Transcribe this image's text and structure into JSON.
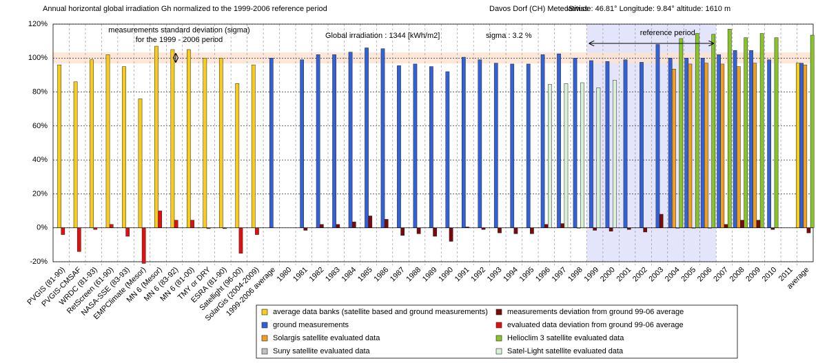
{
  "chart_data": {
    "type": "bar",
    "title": "Annual horizontal global irradiation Gh normalized to the 1999-2006 reference period",
    "subtitle": "Davos Dorf (CH) MeteoSwiss",
    "location": "latitude: 46.81°  Longitude: 9.84°  altitude: 1610 m",
    "annotations": [
      "measurements standard deviation (sigma)",
      "for the 1999 - 2006 period",
      "Global irradiation : 1344 [kWh/m2]",
      "sigma : 3.2 %",
      "reference period"
    ],
    "categories": [
      "PVGIS (81-90)",
      "PVGIS-CMSAF",
      "WRDC (81-93)",
      "RetScreen (61-90)",
      "NASA-SSE (83-93)",
      "EMPClimate (Mesor)",
      "MN 6 (Mesor)",
      "MN 6 (83-92)",
      "MN 6 (81-00)",
      "TMY or DRY",
      "ESRA (81-90)",
      "Satellight (96-00)",
      "SolarGis (2004-2009)",
      "1999-2006 average",
      "1980",
      "1981",
      "1982",
      "1983",
      "1984",
      "1985",
      "1986",
      "1987",
      "1988",
      "1989",
      "1990",
      "1991",
      "1992",
      "1993",
      "1994",
      "1995",
      "1996",
      "1997",
      "1998",
      "1999",
      "2000",
      "2001",
      "2002",
      "2003",
      "2004",
      "2005",
      "2006",
      "2007",
      "2008",
      "2009",
      "2010",
      "2011",
      "average"
    ],
    "ylim": [
      -20,
      120
    ],
    "yticks": [
      {
        "value": -20,
        "label": "-20%"
      },
      {
        "value": 0,
        "label": "0%"
      },
      {
        "value": 20,
        "label": "20%"
      },
      {
        "value": 40,
        "label": "40%"
      },
      {
        "value": 60,
        "label": "60%"
      },
      {
        "value": 80,
        "label": "80%"
      },
      {
        "value": 100,
        "label": "100%"
      },
      {
        "value": 120,
        "label": "120%"
      }
    ],
    "grid": true,
    "series": [
      {
        "name": "average data banks (satellite based and ground measurements)",
        "color": "#f8cc1c",
        "values": [
          96,
          86,
          99,
          102,
          95,
          76,
          107,
          105,
          105,
          100,
          100,
          85,
          96,
          null,
          null,
          null,
          null,
          null,
          null,
          null,
          null,
          null,
          null,
          null,
          null,
          null,
          null,
          null,
          null,
          null,
          null,
          null,
          null,
          null,
          null,
          null,
          null,
          null,
          null,
          null,
          null,
          null,
          null,
          null,
          null,
          null,
          97
        ]
      },
      {
        "name": "ground measurements",
        "color": "#3362d6",
        "values": [
          null,
          null,
          null,
          null,
          null,
          null,
          null,
          null,
          null,
          null,
          null,
          null,
          null,
          100,
          null,
          99,
          102,
          102,
          103.5,
          106,
          105.5,
          95.5,
          96.5,
          95,
          92,
          100.5,
          99,
          97,
          96.5,
          96.5,
          102,
          102.5,
          100,
          98.5,
          98,
          99,
          97.5,
          108,
          100,
          100,
          100,
          102,
          104.5,
          104.5,
          99,
          null,
          97
        ]
      },
      {
        "name": "Solargis satellite evaluated data",
        "color": "#f0a020",
        "values": [
          null,
          null,
          null,
          null,
          null,
          null,
          null,
          null,
          null,
          null,
          null,
          null,
          null,
          null,
          null,
          null,
          null,
          null,
          null,
          null,
          null,
          null,
          null,
          null,
          null,
          null,
          null,
          null,
          null,
          null,
          null,
          null,
          null,
          null,
          null,
          null,
          null,
          null,
          93.5,
          96.5,
          97,
          96.5,
          95,
          97,
          null,
          null,
          96
        ]
      },
      {
        "name": "Suny satellite evaluated data",
        "color": "#c0c0c0",
        "values": [
          null,
          null,
          null,
          null,
          null,
          null,
          null,
          null,
          null,
          null,
          null,
          null,
          null,
          null,
          null,
          null,
          null,
          null,
          null,
          null,
          null,
          null,
          null,
          null,
          null,
          null,
          null,
          null,
          null,
          null,
          null,
          null,
          null,
          null,
          null,
          null,
          null,
          null,
          null,
          null,
          null,
          null,
          null,
          null,
          null,
          null,
          null
        ]
      },
      {
        "name": "measurements deviation from ground 99-06 average",
        "color": "#7a0a0a",
        "values": [
          null,
          null,
          null,
          null,
          null,
          null,
          null,
          null,
          null,
          null,
          null,
          null,
          null,
          null,
          null,
          -1.5,
          2,
          2,
          3.5,
          7,
          5,
          -4.5,
          -3.5,
          -5,
          -8,
          0.5,
          -1,
          -3,
          -3.5,
          -3.5,
          2,
          2.5,
          0,
          -1.5,
          -2,
          -1,
          -2.5,
          8,
          0,
          0,
          0,
          2,
          4.5,
          4.5,
          -1,
          null,
          -3
        ]
      },
      {
        "name": "evaluated data deviation from ground 99-06 average",
        "color": "#e01010",
        "values": [
          -4,
          -14,
          -1,
          2,
          -5,
          -21,
          10,
          4.5,
          4.5,
          -0.5,
          -0.5,
          -15,
          -4,
          null,
          null,
          null,
          null,
          null,
          null,
          null,
          null,
          null,
          null,
          null,
          null,
          null,
          null,
          null,
          null,
          null,
          null,
          null,
          null,
          null,
          null,
          null,
          null,
          null,
          null,
          null,
          null,
          null,
          null,
          null,
          null,
          null,
          null
        ]
      },
      {
        "name": "Helioclim 3  satellite evaluated data",
        "color": "#88c428",
        "values": [
          null,
          null,
          null,
          null,
          null,
          null,
          null,
          null,
          null,
          null,
          null,
          null,
          null,
          null,
          null,
          null,
          null,
          null,
          null,
          null,
          null,
          null,
          null,
          null,
          null,
          null,
          null,
          null,
          null,
          null,
          null,
          null,
          null,
          null,
          null,
          null,
          null,
          null,
          111.5,
          114.5,
          114,
          117,
          112,
          114.5,
          112,
          null,
          113.5
        ]
      },
      {
        "name": "Satel-Light satellite evaluated data",
        "color": "#d8f2d8",
        "values": [
          null,
          null,
          null,
          null,
          null,
          null,
          null,
          null,
          null,
          null,
          null,
          null,
          null,
          null,
          null,
          null,
          null,
          null,
          null,
          null,
          null,
          null,
          null,
          null,
          null,
          null,
          null,
          null,
          null,
          null,
          84.5,
          85,
          85.5,
          82.5,
          87,
          null,
          null,
          null,
          null,
          null,
          null,
          null,
          null,
          null,
          null,
          null,
          null
        ]
      }
    ]
  }
}
